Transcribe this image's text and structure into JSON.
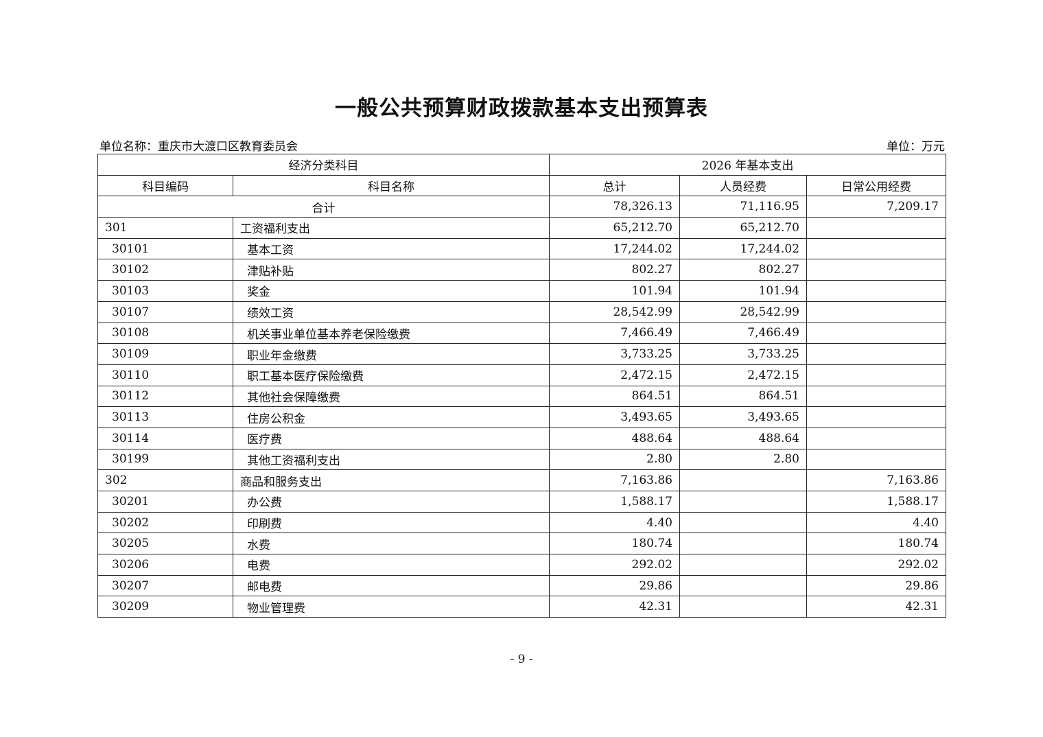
{
  "title": "一般公共预算财政拨款基本支出预算表",
  "unit_name": "单位名称：重庆市大渡口区教育委员会",
  "unit": "单位：万元",
  "header": {
    "group_left": "经济分类科目",
    "group_right": "2026 年基本支出",
    "columns": [
      "科目编码",
      "科目名称",
      "总计",
      "人员经费",
      "日常公用经费"
    ]
  },
  "total_row": {
    "label": "合计",
    "total": "78,326.13",
    "personnel": "71,116.95",
    "public": "7,209.17"
  },
  "rows": [
    {
      "code": "301",
      "name": "工资福利支出",
      "total": "65,212.70",
      "personnel": "65,212.70",
      "public": "",
      "level": 1
    },
    {
      "code": "30101",
      "name": "基本工资",
      "total": "17,244.02",
      "personnel": "17,244.02",
      "public": "",
      "level": 2
    },
    {
      "code": "30102",
      "name": "津贴补贴",
      "total": "802.27",
      "personnel": "802.27",
      "public": "",
      "level": 2
    },
    {
      "code": "30103",
      "name": "奖金",
      "total": "101.94",
      "personnel": "101.94",
      "public": "",
      "level": 2
    },
    {
      "code": "30107",
      "name": "绩效工资",
      "total": "28,542.99",
      "personnel": "28,542.99",
      "public": "",
      "level": 2
    },
    {
      "code": "30108",
      "name": "机关事业单位基本养老保险缴费",
      "total": "7,466.49",
      "personnel": "7,466.49",
      "public": "",
      "level": 2
    },
    {
      "code": "30109",
      "name": "职业年金缴费",
      "total": "3,733.25",
      "personnel": "3,733.25",
      "public": "",
      "level": 2
    },
    {
      "code": "30110",
      "name": "职工基本医疗保险缴费",
      "total": "2,472.15",
      "personnel": "2,472.15",
      "public": "",
      "level": 2
    },
    {
      "code": "30112",
      "name": "其他社会保障缴费",
      "total": "864.51",
      "personnel": "864.51",
      "public": "",
      "level": 2
    },
    {
      "code": "30113",
      "name": "住房公积金",
      "total": "3,493.65",
      "personnel": "3,493.65",
      "public": "",
      "level": 2
    },
    {
      "code": "30114",
      "name": "医疗费",
      "total": "488.64",
      "personnel": "488.64",
      "public": "",
      "level": 2
    },
    {
      "code": "30199",
      "name": "其他工资福利支出",
      "total": "2.80",
      "personnel": "2.80",
      "public": "",
      "level": 2
    },
    {
      "code": "302",
      "name": "商品和服务支出",
      "total": "7,163.86",
      "personnel": "",
      "public": "7,163.86",
      "level": 1
    },
    {
      "code": "30201",
      "name": "办公费",
      "total": "1,588.17",
      "personnel": "",
      "public": "1,588.17",
      "level": 2
    },
    {
      "code": "30202",
      "name": "印刷费",
      "total": "4.40",
      "personnel": "",
      "public": "4.40",
      "level": 2
    },
    {
      "code": "30205",
      "name": "水费",
      "total": "180.74",
      "personnel": "",
      "public": "180.74",
      "level": 2
    },
    {
      "code": "30206",
      "name": "电费",
      "total": "292.02",
      "personnel": "",
      "public": "292.02",
      "level": 2
    },
    {
      "code": "30207",
      "name": "邮电费",
      "total": "29.86",
      "personnel": "",
      "public": "29.86",
      "level": 2
    },
    {
      "code": "30209",
      "name": "物业管理费",
      "total": "42.31",
      "personnel": "",
      "public": "42.31",
      "level": 2
    }
  ],
  "page_number": "- 9 -"
}
